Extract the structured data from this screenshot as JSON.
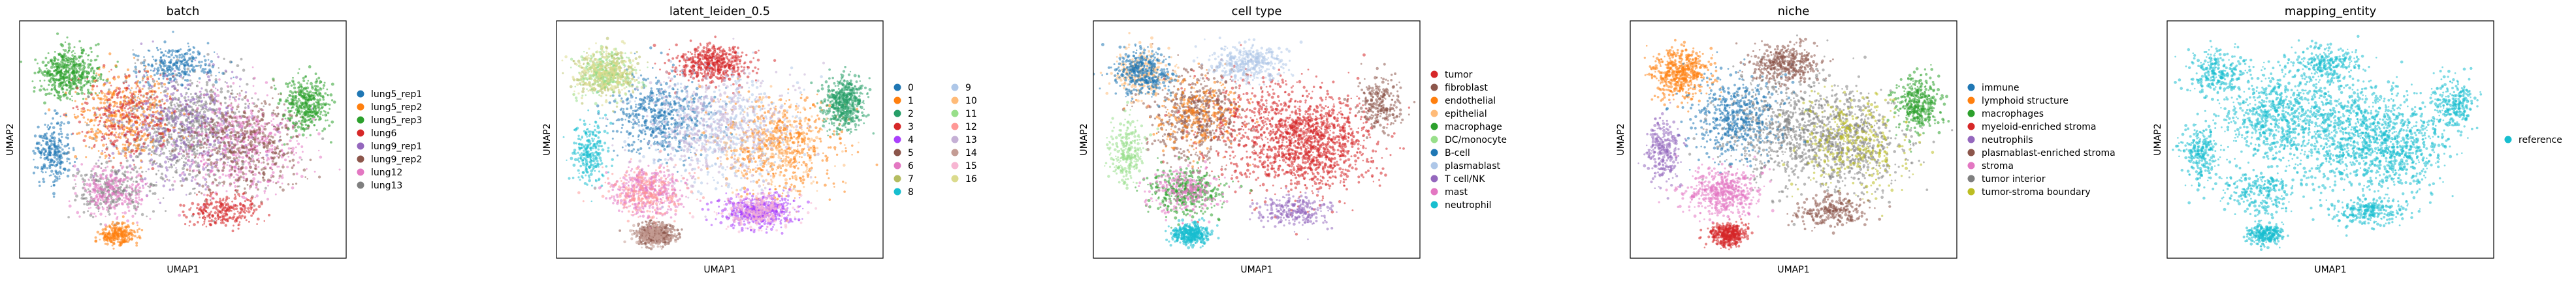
{
  "chart_data": [
    {
      "type": "scatter",
      "title": "batch",
      "xlabel": "UMAP1",
      "ylabel": "UMAP2",
      "legend_position": "right",
      "legend_columns": 1,
      "categories": [
        {
          "name": "lung5_rep1",
          "color": "#1f77b4"
        },
        {
          "name": "lung5_rep2",
          "color": "#ff7f0e"
        },
        {
          "name": "lung5_rep3",
          "color": "#2ca02c"
        },
        {
          "name": "lung6",
          "color": "#d62728"
        },
        {
          "name": "lung9_rep1",
          "color": "#9467bd"
        },
        {
          "name": "lung9_rep2",
          "color": "#8c564b"
        },
        {
          "name": "lung12",
          "color": "#e377c2"
        },
        {
          "name": "lung13",
          "color": "#7f7f7f"
        }
      ]
    },
    {
      "type": "scatter",
      "title": "latent_leiden_0.5",
      "xlabel": "UMAP1",
      "ylabel": "UMAP2",
      "legend_position": "right",
      "legend_columns": 2,
      "categories": [
        {
          "name": "0",
          "color": "#1f77b4"
        },
        {
          "name": "1",
          "color": "#ff7f0e"
        },
        {
          "name": "2",
          "color": "#279e68"
        },
        {
          "name": "3",
          "color": "#d62728"
        },
        {
          "name": "4",
          "color": "#aa40fc"
        },
        {
          "name": "5",
          "color": "#8c564b"
        },
        {
          "name": "6",
          "color": "#e377c2"
        },
        {
          "name": "7",
          "color": "#b5bd61"
        },
        {
          "name": "8",
          "color": "#17becf"
        },
        {
          "name": "9",
          "color": "#aec7e8"
        },
        {
          "name": "10",
          "color": "#ffbb78"
        },
        {
          "name": "11",
          "color": "#98df8a"
        },
        {
          "name": "12",
          "color": "#ff9896"
        },
        {
          "name": "13",
          "color": "#c5b0d5"
        },
        {
          "name": "14",
          "color": "#c49c94"
        },
        {
          "name": "15",
          "color": "#f7b6d2"
        },
        {
          "name": "16",
          "color": "#dbdb8d"
        }
      ]
    },
    {
      "type": "scatter",
      "title": "cell type",
      "xlabel": "UMAP1",
      "ylabel": "UMAP2",
      "legend_position": "right",
      "legend_columns": 1,
      "categories": [
        {
          "name": "tumor",
          "color": "#d62728"
        },
        {
          "name": "fibroblast",
          "color": "#8c564b"
        },
        {
          "name": "endothelial",
          "color": "#ff7f0e"
        },
        {
          "name": "epithelial",
          "color": "#ffbb78"
        },
        {
          "name": "macrophage",
          "color": "#2ca02c"
        },
        {
          "name": "DC/monocyte",
          "color": "#98df8a"
        },
        {
          "name": "B-cell",
          "color": "#1f77b4"
        },
        {
          "name": "plasmablast",
          "color": "#aec7e8"
        },
        {
          "name": "T cell/NK",
          "color": "#9467bd"
        },
        {
          "name": "mast",
          "color": "#e377c2"
        },
        {
          "name": "neutrophil",
          "color": "#17becf"
        }
      ]
    },
    {
      "type": "scatter",
      "title": "niche",
      "xlabel": "UMAP1",
      "ylabel": "UMAP2",
      "legend_position": "right",
      "legend_columns": 1,
      "categories": [
        {
          "name": "immune",
          "color": "#1f77b4"
        },
        {
          "name": "lymphoid structure",
          "color": "#ff7f0e"
        },
        {
          "name": "macrophages",
          "color": "#2ca02c"
        },
        {
          "name": "myeloid-enriched stroma",
          "color": "#d62728"
        },
        {
          "name": "neutrophils",
          "color": "#9467bd"
        },
        {
          "name": "plasmablast-enriched stroma",
          "color": "#8c564b"
        },
        {
          "name": "stroma",
          "color": "#e377c2"
        },
        {
          "name": "tumor interior",
          "color": "#7f7f7f"
        },
        {
          "name": "tumor-stroma boundary",
          "color": "#bcbd22"
        }
      ]
    },
    {
      "type": "scatter",
      "title": "mapping_entity",
      "xlabel": "UMAP1",
      "ylabel": "UMAP2",
      "legend_position": "right",
      "legend_columns": 1,
      "categories": [
        {
          "name": "reference",
          "color": "#17becf"
        }
      ]
    }
  ]
}
